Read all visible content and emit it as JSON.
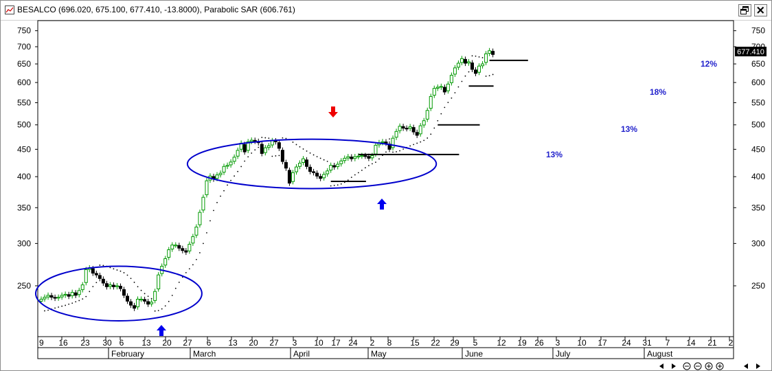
{
  "window": {
    "title": "BESALCO (696.020, 675.100, 677.410, -13.8000), Parabolic SAR (606.761)",
    "restore_icon": "restore-window-icon",
    "close_icon": "close-icon"
  },
  "colors": {
    "up_candle": "#009900",
    "down_candle": "#000000",
    "ellipse": "#0000cc",
    "blue_arrow": "#0000ee",
    "red_arrow": "#ee0000",
    "annotation": "#2222cc",
    "last_price_bg": "#000000"
  },
  "last_price_label": "677.410",
  "x_axis": {
    "day_labels": [
      "9",
      "16",
      "23",
      "30",
      "6",
      "13",
      "20",
      "27",
      "6",
      "13",
      "20",
      "27",
      "3",
      "10",
      "17",
      "24",
      "2",
      "8",
      "15",
      "22",
      "29",
      "5",
      "12",
      "19",
      "26",
      "3",
      "10",
      "17",
      "24",
      "31",
      "7",
      "14",
      "21",
      "2"
    ],
    "month_labels": [
      "February",
      "March",
      "April",
      "May",
      "June",
      "July",
      "August"
    ]
  },
  "nav_icons": [
    "scroll-left-icon",
    "scroll-right-icon",
    "zoom-out-icon",
    "zoom-in-icon",
    "zoom-in-plus-icon",
    "page-left-icon",
    "page-right-icon"
  ],
  "chart_data": {
    "type": "candlestick",
    "title": "BESALCO (696.020, 675.100, 677.410, -13.8000), Parabolic SAR (606.761)",
    "y_scale": "log",
    "ylim": [
      200,
      780
    ],
    "y_ticks": [
      250,
      300,
      350,
      400,
      450,
      500,
      550,
      600,
      650,
      700,
      750
    ],
    "grid": false,
    "series": [
      {
        "name": "BESALCO",
        "close": [
          236,
          238,
          240,
          238,
          237,
          238,
          240,
          241,
          239,
          243,
          240,
          245,
          251,
          268,
          270,
          264,
          262,
          258,
          253,
          249,
          251,
          249,
          250,
          247,
          240,
          234,
          230,
          227,
          236,
          236,
          234,
          231,
          233,
          244,
          262,
          272,
          281,
          292,
          298,
          298,
          294,
          291,
          289,
          299,
          309,
          322,
          343,
          366,
          393,
          401,
          396,
          403,
          406,
          418,
          420,
          426,
          435,
          448,
          462,
          445,
          465,
          468,
          466,
          463,
          442,
          453,
          457,
          467,
          465,
          452,
          427,
          415,
          389,
          407,
          417,
          424,
          432,
          418,
          409,
          407,
          401,
          397,
          404,
          410,
          420,
          417,
          422,
          428,
          433,
          436,
          432,
          436,
          437,
          438,
          437,
          433,
          438,
          458,
          463,
          465,
          462,
          450,
          472,
          486,
          497,
          493,
          492,
          496,
          485,
          478,
          498,
          509,
          532,
          565,
          585,
          588,
          590,
          576,
          596,
          619,
          639,
          652,
          665,
          652,
          656,
          635,
          624,
          644,
          650,
          679,
          688,
          677
        ],
        "parabolic_sar_final": 606.761
      }
    ],
    "annotations": [
      {
        "type": "pct_label",
        "text": "13%"
      },
      {
        "type": "pct_label",
        "text": "13%"
      },
      {
        "type": "pct_label",
        "text": "18%"
      },
      {
        "type": "pct_label",
        "text": "12%"
      },
      {
        "type": "arrow",
        "direction": "up",
        "color": "blue",
        "x_day_index": 28
      },
      {
        "type": "arrow",
        "direction": "down",
        "color": "red",
        "x_day_index": 67
      },
      {
        "type": "arrow",
        "direction": "up",
        "color": "blue",
        "x_day_index": 83
      },
      {
        "type": "ellipse",
        "from_index": 0,
        "to_index": 45,
        "y_low": 215,
        "y_high": 272
      },
      {
        "type": "ellipse",
        "from_index": 44,
        "to_index": 113,
        "y_low": 380,
        "y_high": 470
      }
    ],
    "resistance_levels": [
      {
        "from_index": 84,
        "to_index": 93,
        "y": 392
      },
      {
        "from_index": 92,
        "to_index": 111,
        "y": 440
      },
      {
        "from_index": 112,
        "to_index": 120,
        "y": 440
      },
      {
        "from_index": 115,
        "to_index": 126,
        "y": 500
      },
      {
        "from_index": 124,
        "to_index": 130,
        "y": 591
      },
      {
        "from_index": 130,
        "to_index": 140,
        "y": 660
      }
    ]
  }
}
